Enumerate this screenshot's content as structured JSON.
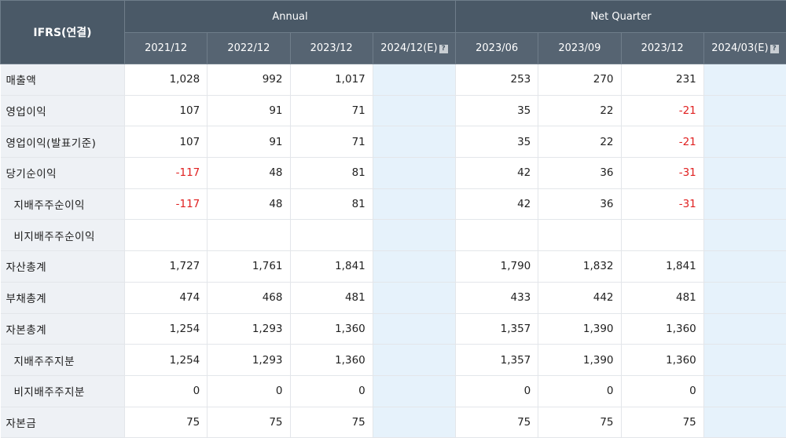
{
  "header": {
    "corner": "IFRS(연결)",
    "annual": "Annual",
    "quarter": "Net Quarter",
    "columns": [
      "2021/12",
      "2022/12",
      "2023/12",
      "2024/12(E)",
      "2023/06",
      "2023/09",
      "2023/12",
      "2024/03(E)"
    ],
    "estimate_icon": "?"
  },
  "rows": [
    {
      "label": "매출액",
      "values": [
        "1,028",
        "992",
        "1,017",
        "",
        "253",
        "270",
        "231",
        ""
      ]
    },
    {
      "label": "영업이익",
      "values": [
        "107",
        "91",
        "71",
        "",
        "35",
        "22",
        "-21",
        ""
      ]
    },
    {
      "label": "영업이익(발표기준)",
      "values": [
        "107",
        "91",
        "71",
        "",
        "35",
        "22",
        "-21",
        ""
      ]
    },
    {
      "label": "당기순이익",
      "values": [
        "-117",
        "48",
        "81",
        "",
        "42",
        "36",
        "-31",
        ""
      ]
    },
    {
      "label": "지배주주순이익",
      "values": [
        "-117",
        "48",
        "81",
        "",
        "42",
        "36",
        "-31",
        ""
      ]
    },
    {
      "label": "비지배주주순이익",
      "values": [
        "",
        "",
        "",
        "",
        "",
        "",
        "",
        ""
      ]
    },
    {
      "label": "자산총계",
      "values": [
        "1,727",
        "1,761",
        "1,841",
        "",
        "1,790",
        "1,832",
        "1,841",
        ""
      ]
    },
    {
      "label": "부채총계",
      "values": [
        "474",
        "468",
        "481",
        "",
        "433",
        "442",
        "481",
        ""
      ]
    },
    {
      "label": "자본총계",
      "values": [
        "1,254",
        "1,293",
        "1,360",
        "",
        "1,357",
        "1,390",
        "1,360",
        ""
      ]
    },
    {
      "label": "지배주주지분",
      "values": [
        "1,254",
        "1,293",
        "1,360",
        "",
        "1,357",
        "1,390",
        "1,360",
        ""
      ]
    },
    {
      "label": "비지배주주지분",
      "values": [
        "0",
        "0",
        "0",
        "",
        "0",
        "0",
        "0",
        ""
      ]
    },
    {
      "label": "자본금",
      "values": [
        "75",
        "75",
        "75",
        "",
        "75",
        "75",
        "75",
        ""
      ]
    }
  ],
  "colors": {
    "header_bg": "#4a5967",
    "label_bg": "#eef1f5",
    "estimate_bg": "#e6f2fb",
    "negative": "#e02020"
  }
}
